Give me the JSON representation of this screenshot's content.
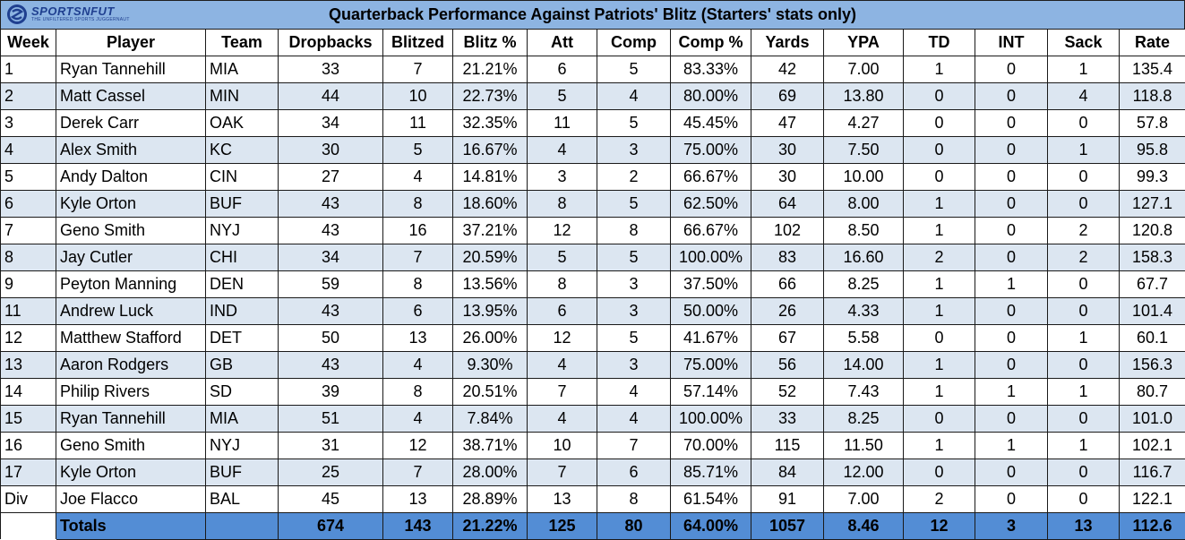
{
  "title": "Quarterback Performance Against Patriots' Blitz (Starters' stats only)",
  "logo": {
    "brand": "SPORTSNFUT",
    "tagline": "THE UNFILTERED SPORTS JUGGERNAUT",
    "icon": "sportsnaut-logo-icon"
  },
  "colors": {
    "header_bg": "#8db4e2",
    "alt_row": "#dce6f1",
    "total_bg": "#538dd5"
  },
  "columns": [
    "Week",
    "Player",
    "Team",
    "Dropbacks",
    "Blitzed",
    "Blitz %",
    "Att",
    "Comp",
    "Comp %",
    "Yards",
    "YPA",
    "TD",
    "INT",
    "Sack",
    "Rate"
  ],
  "rows": [
    [
      "1",
      "Ryan Tannehill",
      "MIA",
      "33",
      "7",
      "21.21%",
      "6",
      "5",
      "83.33%",
      "42",
      "7.00",
      "1",
      "0",
      "1",
      "135.4"
    ],
    [
      "2",
      "Matt Cassel",
      "MIN",
      "44",
      "10",
      "22.73%",
      "5",
      "4",
      "80.00%",
      "69",
      "13.80",
      "0",
      "0",
      "4",
      "118.8"
    ],
    [
      "3",
      "Derek Carr",
      "OAK",
      "34",
      "11",
      "32.35%",
      "11",
      "5",
      "45.45%",
      "47",
      "4.27",
      "0",
      "0",
      "0",
      "57.8"
    ],
    [
      "4",
      "Alex Smith",
      "KC",
      "30",
      "5",
      "16.67%",
      "4",
      "3",
      "75.00%",
      "30",
      "7.50",
      "0",
      "0",
      "1",
      "95.8"
    ],
    [
      "5",
      "Andy Dalton",
      "CIN",
      "27",
      "4",
      "14.81%",
      "3",
      "2",
      "66.67%",
      "30",
      "10.00",
      "0",
      "0",
      "0",
      "99.3"
    ],
    [
      "6",
      "Kyle Orton",
      "BUF",
      "43",
      "8",
      "18.60%",
      "8",
      "5",
      "62.50%",
      "64",
      "8.00",
      "1",
      "0",
      "0",
      "127.1"
    ],
    [
      "7",
      "Geno Smith",
      "NYJ",
      "43",
      "16",
      "37.21%",
      "12",
      "8",
      "66.67%",
      "102",
      "8.50",
      "1",
      "0",
      "2",
      "120.8"
    ],
    [
      "8",
      "Jay Cutler",
      "CHI",
      "34",
      "7",
      "20.59%",
      "5",
      "5",
      "100.00%",
      "83",
      "16.60",
      "2",
      "0",
      "2",
      "158.3"
    ],
    [
      "9",
      "Peyton Manning",
      "DEN",
      "59",
      "8",
      "13.56%",
      "8",
      "3",
      "37.50%",
      "66",
      "8.25",
      "1",
      "1",
      "0",
      "67.7"
    ],
    [
      "11",
      "Andrew Luck",
      "IND",
      "43",
      "6",
      "13.95%",
      "6",
      "3",
      "50.00%",
      "26",
      "4.33",
      "1",
      "0",
      "0",
      "101.4"
    ],
    [
      "12",
      "Matthew Stafford",
      "DET",
      "50",
      "13",
      "26.00%",
      "12",
      "5",
      "41.67%",
      "67",
      "5.58",
      "0",
      "0",
      "1",
      "60.1"
    ],
    [
      "13",
      "Aaron Rodgers",
      "GB",
      "43",
      "4",
      "9.30%",
      "4",
      "3",
      "75.00%",
      "56",
      "14.00",
      "1",
      "0",
      "0",
      "156.3"
    ],
    [
      "14",
      "Philip Rivers",
      "SD",
      "39",
      "8",
      "20.51%",
      "7",
      "4",
      "57.14%",
      "52",
      "7.43",
      "1",
      "1",
      "1",
      "80.7"
    ],
    [
      "15",
      "Ryan Tannehill",
      "MIA",
      "51",
      "4",
      "7.84%",
      "4",
      "4",
      "100.00%",
      "33",
      "8.25",
      "0",
      "0",
      "0",
      "101.0"
    ],
    [
      "16",
      "Geno Smith",
      "NYJ",
      "31",
      "12",
      "38.71%",
      "10",
      "7",
      "70.00%",
      "115",
      "11.50",
      "1",
      "1",
      "1",
      "102.1"
    ],
    [
      "17",
      "Kyle Orton",
      "BUF",
      "25",
      "7",
      "28.00%",
      "7",
      "6",
      "85.71%",
      "84",
      "12.00",
      "0",
      "0",
      "0",
      "116.7"
    ],
    [
      "Div",
      "Joe Flacco",
      "BAL",
      "45",
      "13",
      "28.89%",
      "13",
      "8",
      "61.54%",
      "91",
      "7.00",
      "2",
      "0",
      "0",
      "122.1"
    ]
  ],
  "totals": [
    "",
    "Totals",
    "",
    "674",
    "143",
    "21.22%",
    "125",
    "80",
    "64.00%",
    "1057",
    "8.46",
    "12",
    "3",
    "13",
    "112.6"
  ]
}
